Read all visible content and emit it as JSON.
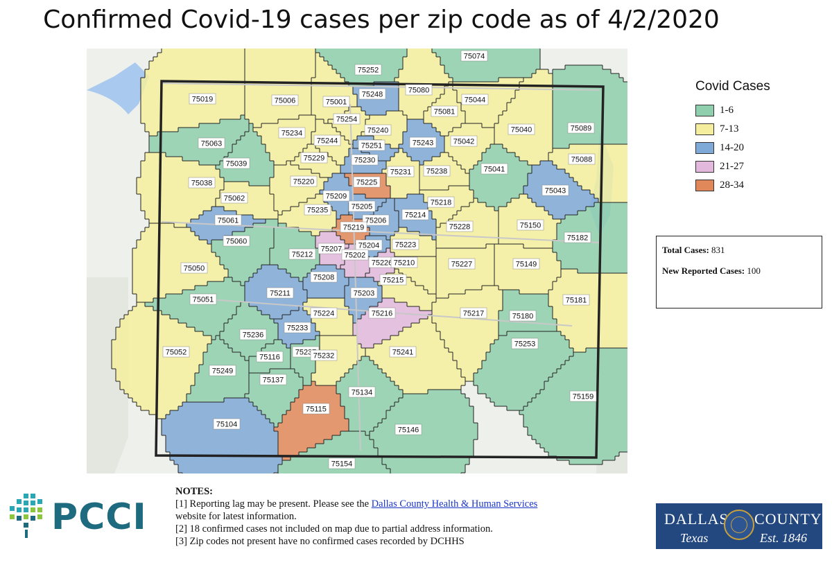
{
  "title": "Confirmed Covid-19 cases per zip code as of 4/2/2020",
  "colors": {
    "green": "#8fcfad",
    "yellow": "#f5ee9e",
    "blue": "#7fa9d6",
    "pink": "#e2b9dc",
    "orange": "#e0885a"
  },
  "legend": {
    "title": "Covid Cases",
    "items": [
      {
        "label": "1-6",
        "color": "#8fcfad"
      },
      {
        "label": "7-13",
        "color": "#f5ee9e"
      },
      {
        "label": "14-20",
        "color": "#7fa9d6"
      },
      {
        "label": "21-27",
        "color": "#e2b9dc"
      },
      {
        "label": "28-34",
        "color": "#e0885a"
      }
    ]
  },
  "stats": {
    "total_label": "Total Cases:",
    "total_value": "831",
    "new_label": "New Reported Cases:",
    "new_value": "100"
  },
  "notes": {
    "heading": "NOTES:",
    "n1_pre": "[1] Reporting lag may be present. Please see the",
    "n1_link": "Dallas County Health & Human Services",
    "n1_post": "website for latest information.",
    "n2": "[2] 18 confirmed cases not included on map due to partial address information.",
    "n3": "[3] Zip codes not present have no confirmed cases recorded by DCHHS"
  },
  "logos": {
    "pcci": "PCCI",
    "dallas": "DALLAS",
    "county": "COUNTY",
    "texas": "Texas",
    "est": "Est. 1846"
  },
  "zip_codes": [
    {
      "zip": "75074",
      "cat": "green"
    },
    {
      "zip": "75252",
      "cat": "green"
    },
    {
      "zip": "75248",
      "cat": "blue"
    },
    {
      "zip": "75080",
      "cat": "yellow"
    },
    {
      "zip": "75019",
      "cat": "yellow"
    },
    {
      "zip": "75006",
      "cat": "yellow"
    },
    {
      "zip": "75001",
      "cat": "yellow"
    },
    {
      "zip": "75044",
      "cat": "yellow"
    },
    {
      "zip": "75081",
      "cat": "yellow"
    },
    {
      "zip": "75254",
      "cat": "yellow"
    },
    {
      "zip": "75240",
      "cat": "yellow"
    },
    {
      "zip": "75040",
      "cat": "yellow"
    },
    {
      "zip": "75089",
      "cat": "green"
    },
    {
      "zip": "75234",
      "cat": "yellow"
    },
    {
      "zip": "75244",
      "cat": "yellow"
    },
    {
      "zip": "75251",
      "cat": "blue"
    },
    {
      "zip": "75243",
      "cat": "blue"
    },
    {
      "zip": "75042",
      "cat": "yellow"
    },
    {
      "zip": "75063",
      "cat": "green"
    },
    {
      "zip": "75039",
      "cat": "green"
    },
    {
      "zip": "75229",
      "cat": "yellow"
    },
    {
      "zip": "75230",
      "cat": "blue"
    },
    {
      "zip": "75231",
      "cat": "yellow"
    },
    {
      "zip": "75238",
      "cat": "yellow"
    },
    {
      "zip": "75041",
      "cat": "green"
    },
    {
      "zip": "75088",
      "cat": "yellow"
    },
    {
      "zip": "75038",
      "cat": "yellow"
    },
    {
      "zip": "75220",
      "cat": "yellow"
    },
    {
      "zip": "75225",
      "cat": "orange"
    },
    {
      "zip": "75043",
      "cat": "blue"
    },
    {
      "zip": "75062",
      "cat": "yellow"
    },
    {
      "zip": "75209",
      "cat": "blue"
    },
    {
      "zip": "75218",
      "cat": "yellow"
    },
    {
      "zip": "75235",
      "cat": "yellow"
    },
    {
      "zip": "75205",
      "cat": "blue"
    },
    {
      "zip": "75214",
      "cat": "blue"
    },
    {
      "zip": "75061",
      "cat": "blue"
    },
    {
      "zip": "75206",
      "cat": "blue"
    },
    {
      "zip": "75228",
      "cat": "yellow"
    },
    {
      "zip": "75219",
      "cat": "orange"
    },
    {
      "zip": "75150",
      "cat": "yellow"
    },
    {
      "zip": "75182",
      "cat": "green"
    },
    {
      "zip": "75060",
      "cat": "green"
    },
    {
      "zip": "75207",
      "cat": "pink"
    },
    {
      "zip": "75204",
      "cat": "blue"
    },
    {
      "zip": "75223",
      "cat": "yellow"
    },
    {
      "zip": "75212",
      "cat": "green"
    },
    {
      "zip": "75202",
      "cat": "pink"
    },
    {
      "zip": "75226",
      "cat": "pink"
    },
    {
      "zip": "75210",
      "cat": "yellow"
    },
    {
      "zip": "75227",
      "cat": "yellow"
    },
    {
      "zip": "75149",
      "cat": "yellow"
    },
    {
      "zip": "75050",
      "cat": "yellow"
    },
    {
      "zip": "75208",
      "cat": "blue"
    },
    {
      "zip": "75215",
      "cat": "yellow"
    },
    {
      "zip": "75211",
      "cat": "blue"
    },
    {
      "zip": "75203",
      "cat": "blue"
    },
    {
      "zip": "75051",
      "cat": "green"
    },
    {
      "zip": "75181",
      "cat": "yellow"
    },
    {
      "zip": "75216",
      "cat": "pink"
    },
    {
      "zip": "75224",
      "cat": "yellow"
    },
    {
      "zip": "75217",
      "cat": "yellow"
    },
    {
      "zip": "75180",
      "cat": "green"
    },
    {
      "zip": "75233",
      "cat": "blue"
    },
    {
      "zip": "75236",
      "cat": "green"
    },
    {
      "zip": "75253",
      "cat": "green"
    },
    {
      "zip": "75052",
      "cat": "yellow"
    },
    {
      "zip": "75237",
      "cat": "green"
    },
    {
      "zip": "75116",
      "cat": "green"
    },
    {
      "zip": "75232",
      "cat": "yellow"
    },
    {
      "zip": "75241",
      "cat": "yellow"
    },
    {
      "zip": "75249",
      "cat": "green"
    },
    {
      "zip": "75137",
      "cat": "green"
    },
    {
      "zip": "75134",
      "cat": "green"
    },
    {
      "zip": "75159",
      "cat": "green"
    },
    {
      "zip": "75115",
      "cat": "orange"
    },
    {
      "zip": "75104",
      "cat": "blue"
    },
    {
      "zip": "75146",
      "cat": "green"
    },
    {
      "zip": "75154",
      "cat": "green"
    }
  ]
}
